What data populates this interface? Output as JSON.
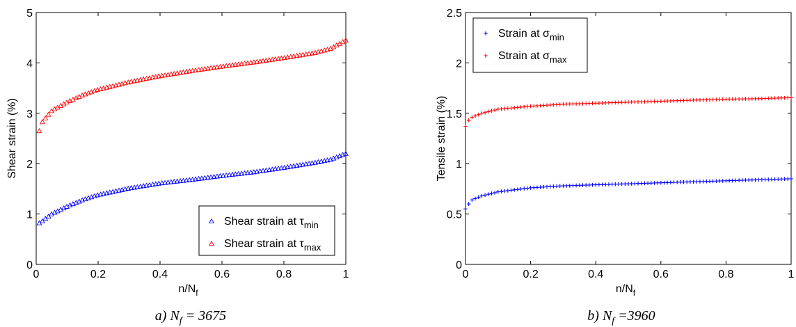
{
  "chart_data": [
    {
      "type": "scatter",
      "caption": {
        "prefix": "a) N",
        "sub": "f",
        "suffix": " = 3675"
      },
      "ylabel": "Shear strain (%)",
      "xlabel": {
        "main": "n/N",
        "sub": "f"
      },
      "xlim": [
        0,
        1
      ],
      "ylim": [
        0,
        5
      ],
      "xticks": [
        "0",
        "0.2",
        "0.4",
        "0.6",
        "0.8",
        "1"
      ],
      "xtick_values": [
        0,
        0.2,
        0.4,
        0.6,
        0.8,
        1
      ],
      "yticks": [
        "0",
        "1",
        "2",
        "3",
        "4",
        "5"
      ],
      "ytick_values": [
        0,
        1,
        2,
        3,
        4,
        5
      ],
      "grid": false,
      "legend_position": "bottom-right",
      "x": [
        0.01,
        0.02,
        0.05,
        0.1,
        0.15,
        0.2,
        0.3,
        0.4,
        0.5,
        0.6,
        0.7,
        0.8,
        0.9,
        0.95,
        1.0
      ],
      "series": [
        {
          "name": "Shear strain at τmin",
          "label_main": "Shear strain at τ",
          "label_sub": "min",
          "color": "#0000ff",
          "marker": "triangle",
          "values": [
            0.82,
            0.86,
            1.0,
            1.15,
            1.28,
            1.38,
            1.51,
            1.61,
            1.68,
            1.76,
            1.83,
            1.92,
            2.02,
            2.08,
            2.2
          ]
        },
        {
          "name": "Shear strain at τmax",
          "label_main": "Shear strain at τ",
          "label_sub": "max",
          "color": "#ff0000",
          "marker": "triangle",
          "values": [
            2.65,
            2.83,
            3.05,
            3.22,
            3.36,
            3.47,
            3.62,
            3.74,
            3.84,
            3.93,
            4.01,
            4.1,
            4.2,
            4.28,
            4.45
          ]
        }
      ]
    },
    {
      "type": "scatter",
      "caption": {
        "prefix": "b) N",
        "sub": "f",
        "suffix": " =3960"
      },
      "ylabel": "Tensile strain (%)",
      "xlabel": {
        "main": "n/N",
        "sub": "f"
      },
      "xlim": [
        0,
        1
      ],
      "ylim": [
        0,
        2.5
      ],
      "xticks": [
        "0",
        "0.2",
        "0.4",
        "0.6",
        "0.8",
        "1"
      ],
      "xtick_values": [
        0,
        0.2,
        0.4,
        0.6,
        0.8,
        1
      ],
      "yticks": [
        "0",
        "0.5",
        "1",
        "1.5",
        "2",
        "2.5"
      ],
      "ytick_values": [
        0,
        0.5,
        1,
        1.5,
        2,
        2.5
      ],
      "grid": false,
      "legend_position": "top-left",
      "x": [
        0.0,
        0.01,
        0.02,
        0.05,
        0.1,
        0.2,
        0.3,
        0.4,
        0.5,
        0.6,
        0.7,
        0.8,
        0.9,
        1.0
      ],
      "series": [
        {
          "name": "Strain at σmin",
          "label_main": "Strain at σ",
          "label_sub": "min",
          "color": "#0000ff",
          "marker": "plus",
          "values": [
            0.55,
            0.6,
            0.64,
            0.68,
            0.72,
            0.76,
            0.78,
            0.79,
            0.8,
            0.81,
            0.82,
            0.83,
            0.84,
            0.85
          ]
        },
        {
          "name": "Strain at σmax",
          "label_main": "Strain at σ",
          "label_sub": "max",
          "color": "#ff0000",
          "marker": "plus",
          "values": [
            1.37,
            1.43,
            1.46,
            1.5,
            1.54,
            1.57,
            1.59,
            1.6,
            1.61,
            1.62,
            1.63,
            1.64,
            1.645,
            1.655
          ]
        }
      ]
    }
  ]
}
